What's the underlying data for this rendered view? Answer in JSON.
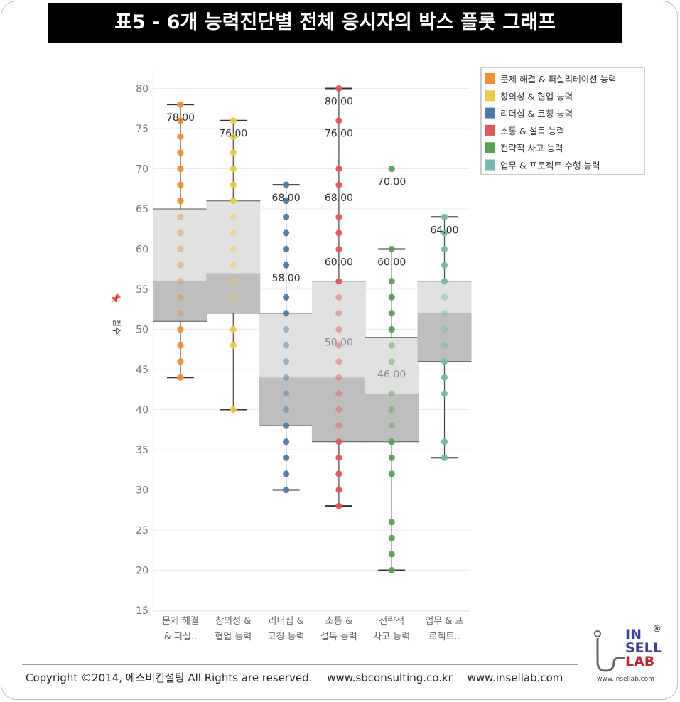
{
  "title": "표5 - 6개 능력진단별 전체 응시자의 박스 플롯 그래프",
  "chart_data": {
    "type": "boxplot",
    "ylabel": "점수",
    "ylim": [
      14,
      82
    ],
    "yticks": [
      15,
      20,
      25,
      30,
      35,
      40,
      45,
      50,
      55,
      60,
      65,
      70,
      75,
      80
    ],
    "legend_position": "top-right",
    "series": [
      {
        "name": "문제 해결 & 퍼실리테이션 능력",
        "axis_label": [
          "문제 해결",
          "& 퍼실.."
        ],
        "color": "#f28e2b",
        "whisker_low": 44,
        "q1": 51,
        "median": 56,
        "q3": 65,
        "whisker_high": 78,
        "labels": [
          "78.00"
        ],
        "points": [
          44,
          46,
          48,
          50,
          52,
          54,
          56,
          58,
          60,
          62,
          64,
          66,
          68,
          70,
          72,
          74,
          76,
          78
        ]
      },
      {
        "name": "창의성 & 협업 능력",
        "axis_label": [
          "창의성 &",
          "협업 능력"
        ],
        "color": "#edc948",
        "whisker_low": 40,
        "q1": 52,
        "median": 57,
        "q3": 66,
        "whisker_high": 76,
        "labels": [
          "76.00"
        ],
        "points": [
          40,
          48,
          50,
          54,
          56,
          58,
          60,
          62,
          64,
          66,
          68,
          70,
          72,
          74,
          76
        ]
      },
      {
        "name": "리더십 & 코칭 능력",
        "axis_label": [
          "리더십 &",
          "코칭 능력"
        ],
        "color": "#4e79a7",
        "whisker_low": 30,
        "q1": 38,
        "median": 44,
        "q3": 52,
        "whisker_high": 68,
        "labels": [
          "68.00",
          "58.00"
        ],
        "points": [
          30,
          32,
          34,
          36,
          38,
          40,
          42,
          44,
          46,
          48,
          50,
          52,
          54,
          58,
          60,
          62,
          64,
          66,
          68
        ]
      },
      {
        "name": "소통 & 설득 능력",
        "axis_label": [
          "소통 &",
          "설득 능력"
        ],
        "color": "#e15759",
        "whisker_low": 28,
        "q1": 36,
        "median": 44,
        "q3": 56,
        "whisker_high": 80,
        "labels": [
          "80.00",
          "76.00",
          "68.00",
          "60.00",
          "50.00"
        ],
        "points": [
          28,
          30,
          32,
          34,
          36,
          38,
          40,
          42,
          44,
          46,
          48,
          50,
          52,
          54,
          56,
          60,
          62,
          64,
          68,
          70,
          76,
          80
        ]
      },
      {
        "name": "전략적 사고 능력",
        "axis_label": [
          "전략적",
          "사고 능력"
        ],
        "color": "#59a14f",
        "whisker_low": 20,
        "q1": 36,
        "median": 42,
        "q3": 49,
        "whisker_high": 60,
        "labels": [
          "70.00",
          "60.00",
          "46.00"
        ],
        "points": [
          20,
          22,
          24,
          26,
          32,
          34,
          36,
          38,
          40,
          42,
          46,
          48,
          50,
          52,
          54,
          56,
          60,
          70
        ]
      },
      {
        "name": "업무 & 프로젝트 수행 능력",
        "axis_label": [
          "업무 & 프",
          "로젝트.."
        ],
        "color": "#76b7b2",
        "whisker_low": 34,
        "q1": 46,
        "median": 52,
        "q3": 56,
        "whisker_high": 64,
        "labels": [
          "64.00"
        ],
        "points": [
          34,
          36,
          42,
          44,
          46,
          48,
          50,
          52,
          54,
          56,
          58,
          60,
          62,
          64
        ]
      }
    ]
  },
  "footer": {
    "copyright": "Copyright ©2014, 에스비컨설팅 All Rights are reserved.",
    "url1": "www.sbconsulting.co.kr",
    "url2": "www.insellab.com"
  },
  "logo": {
    "line1": "IN",
    "line2": "SELL",
    "line3": "LAB",
    "reg": "®",
    "url": "www.insellab.com"
  }
}
